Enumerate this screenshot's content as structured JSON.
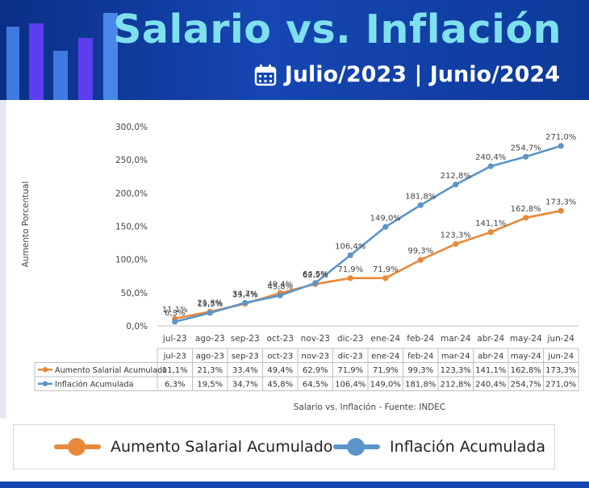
{
  "header": {
    "title": "Salario vs. Inflación",
    "period": "Julio/2023 | Junio/2024",
    "calendar_icon": "calendar-icon",
    "background_color": "#1546b2",
    "title_color": "#7fe0ee"
  },
  "chart_data": {
    "type": "line",
    "categories": [
      "jul-23",
      "ago-23",
      "sep-23",
      "oct-23",
      "nov-23",
      "dic-23",
      "ene-24",
      "feb-24",
      "mar-24",
      "abr-24",
      "may-24",
      "jun-24"
    ],
    "series": [
      {
        "name": "Aumento Salarial Acumulado",
        "color": "#e8883a",
        "values": [
          11.1,
          21.3,
          33.4,
          49.4,
          62.9,
          71.9,
          71.9,
          99.3,
          123.3,
          141.1,
          162.8,
          173.3
        ],
        "labels": [
          "11,1%",
          "21,3%",
          "33,4%",
          "49,4%",
          "62,9%",
          "71,9%",
          "71,9%",
          "99,3%",
          "123,3%",
          "141,1%",
          "162,8%",
          "173,3%"
        ]
      },
      {
        "name": "Inflación Acumulada",
        "color": "#5b95c8",
        "values": [
          6.3,
          19.5,
          34.7,
          45.8,
          64.5,
          106.4,
          149.0,
          181.8,
          212.8,
          240.4,
          254.7,
          271.0
        ],
        "labels": [
          "6,3%",
          "19,5%",
          "34,7%",
          "45,8%",
          "64,5%",
          "106,4%",
          "149,0%",
          "181,8%",
          "212,8%",
          "240,4%",
          "254,7%",
          "271,0%"
        ]
      }
    ],
    "ylabel": "Aumento Porcentual",
    "ylim": [
      0,
      300
    ],
    "yticks": [
      0,
      50,
      100,
      150,
      200,
      250,
      300
    ],
    "ytick_labels": [
      "0,0%",
      "50,0%",
      "100,0%",
      "150,0%",
      "200,0%",
      "250,0%",
      "300,0%"
    ],
    "caption": "Salario vs. Inflación - Fuente: INDEC",
    "legend_placement": "bottom",
    "data_table": true
  },
  "legend": {
    "items": [
      {
        "label": "Aumento Salarial Acumulado",
        "color": "#e8883a"
      },
      {
        "label": "Inflación Acumulada",
        "color": "#5b95c8"
      }
    ]
  }
}
